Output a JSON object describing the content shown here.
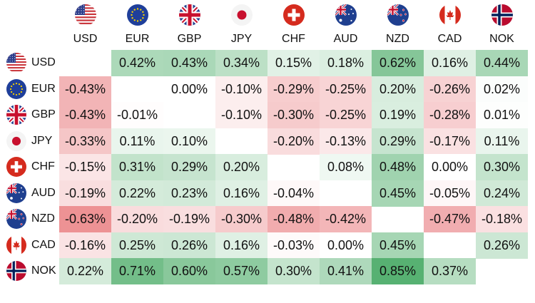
{
  "currencies": [
    "USD",
    "EUR",
    "GBP",
    "JPY",
    "CHF",
    "AUD",
    "NZD",
    "CAD",
    "NOK"
  ],
  "matrix": [
    [
      null,
      "0.42%",
      "0.43%",
      "0.34%",
      "0.15%",
      "0.18%",
      "0.62%",
      "0.16%",
      "0.44%"
    ],
    [
      "-0.43%",
      null,
      "0.00%",
      "-0.10%",
      "-0.29%",
      "-0.25%",
      "0.20%",
      "-0.26%",
      "0.02%"
    ],
    [
      "-0.43%",
      "-0.01%",
      null,
      "-0.10%",
      "-0.30%",
      "-0.25%",
      "0.19%",
      "-0.28%",
      "0.01%"
    ],
    [
      "-0.33%",
      "0.11%",
      "0.10%",
      null,
      "-0.20%",
      "-0.13%",
      "0.29%",
      "-0.17%",
      "0.11%"
    ],
    [
      "-0.15%",
      "0.31%",
      "0.29%",
      "0.20%",
      null,
      "0.08%",
      "0.48%",
      "0.00%",
      "0.30%"
    ],
    [
      "-0.19%",
      "0.22%",
      "0.23%",
      "0.16%",
      "-0.04%",
      null,
      "0.45%",
      "-0.05%",
      "0.24%"
    ],
    [
      "-0.63%",
      "-0.20%",
      "-0.19%",
      "-0.30%",
      "-0.48%",
      "-0.42%",
      null,
      "-0.47%",
      "-0.18%"
    ],
    [
      "-0.16%",
      "0.25%",
      "0.26%",
      "0.16%",
      "-0.03%",
      "0.00%",
      "0.45%",
      null,
      "0.26%"
    ],
    [
      "0.22%",
      "0.71%",
      "0.60%",
      "0.57%",
      "0.30%",
      "0.41%",
      "0.85%",
      "0.37%",
      null
    ]
  ],
  "colors": {
    "positive": "#2e9e4f",
    "negative": "#e0474c",
    "neutral": "#ffffff"
  },
  "icons": {
    "USD": "us-flag-icon",
    "EUR": "eu-flag-icon",
    "GBP": "uk-flag-icon",
    "JPY": "japan-flag-icon",
    "CHF": "swiss-flag-icon",
    "AUD": "australia-flag-icon",
    "NZD": "new-zealand-flag-icon",
    "CAD": "canada-flag-icon",
    "NOK": "norway-flag-icon"
  }
}
